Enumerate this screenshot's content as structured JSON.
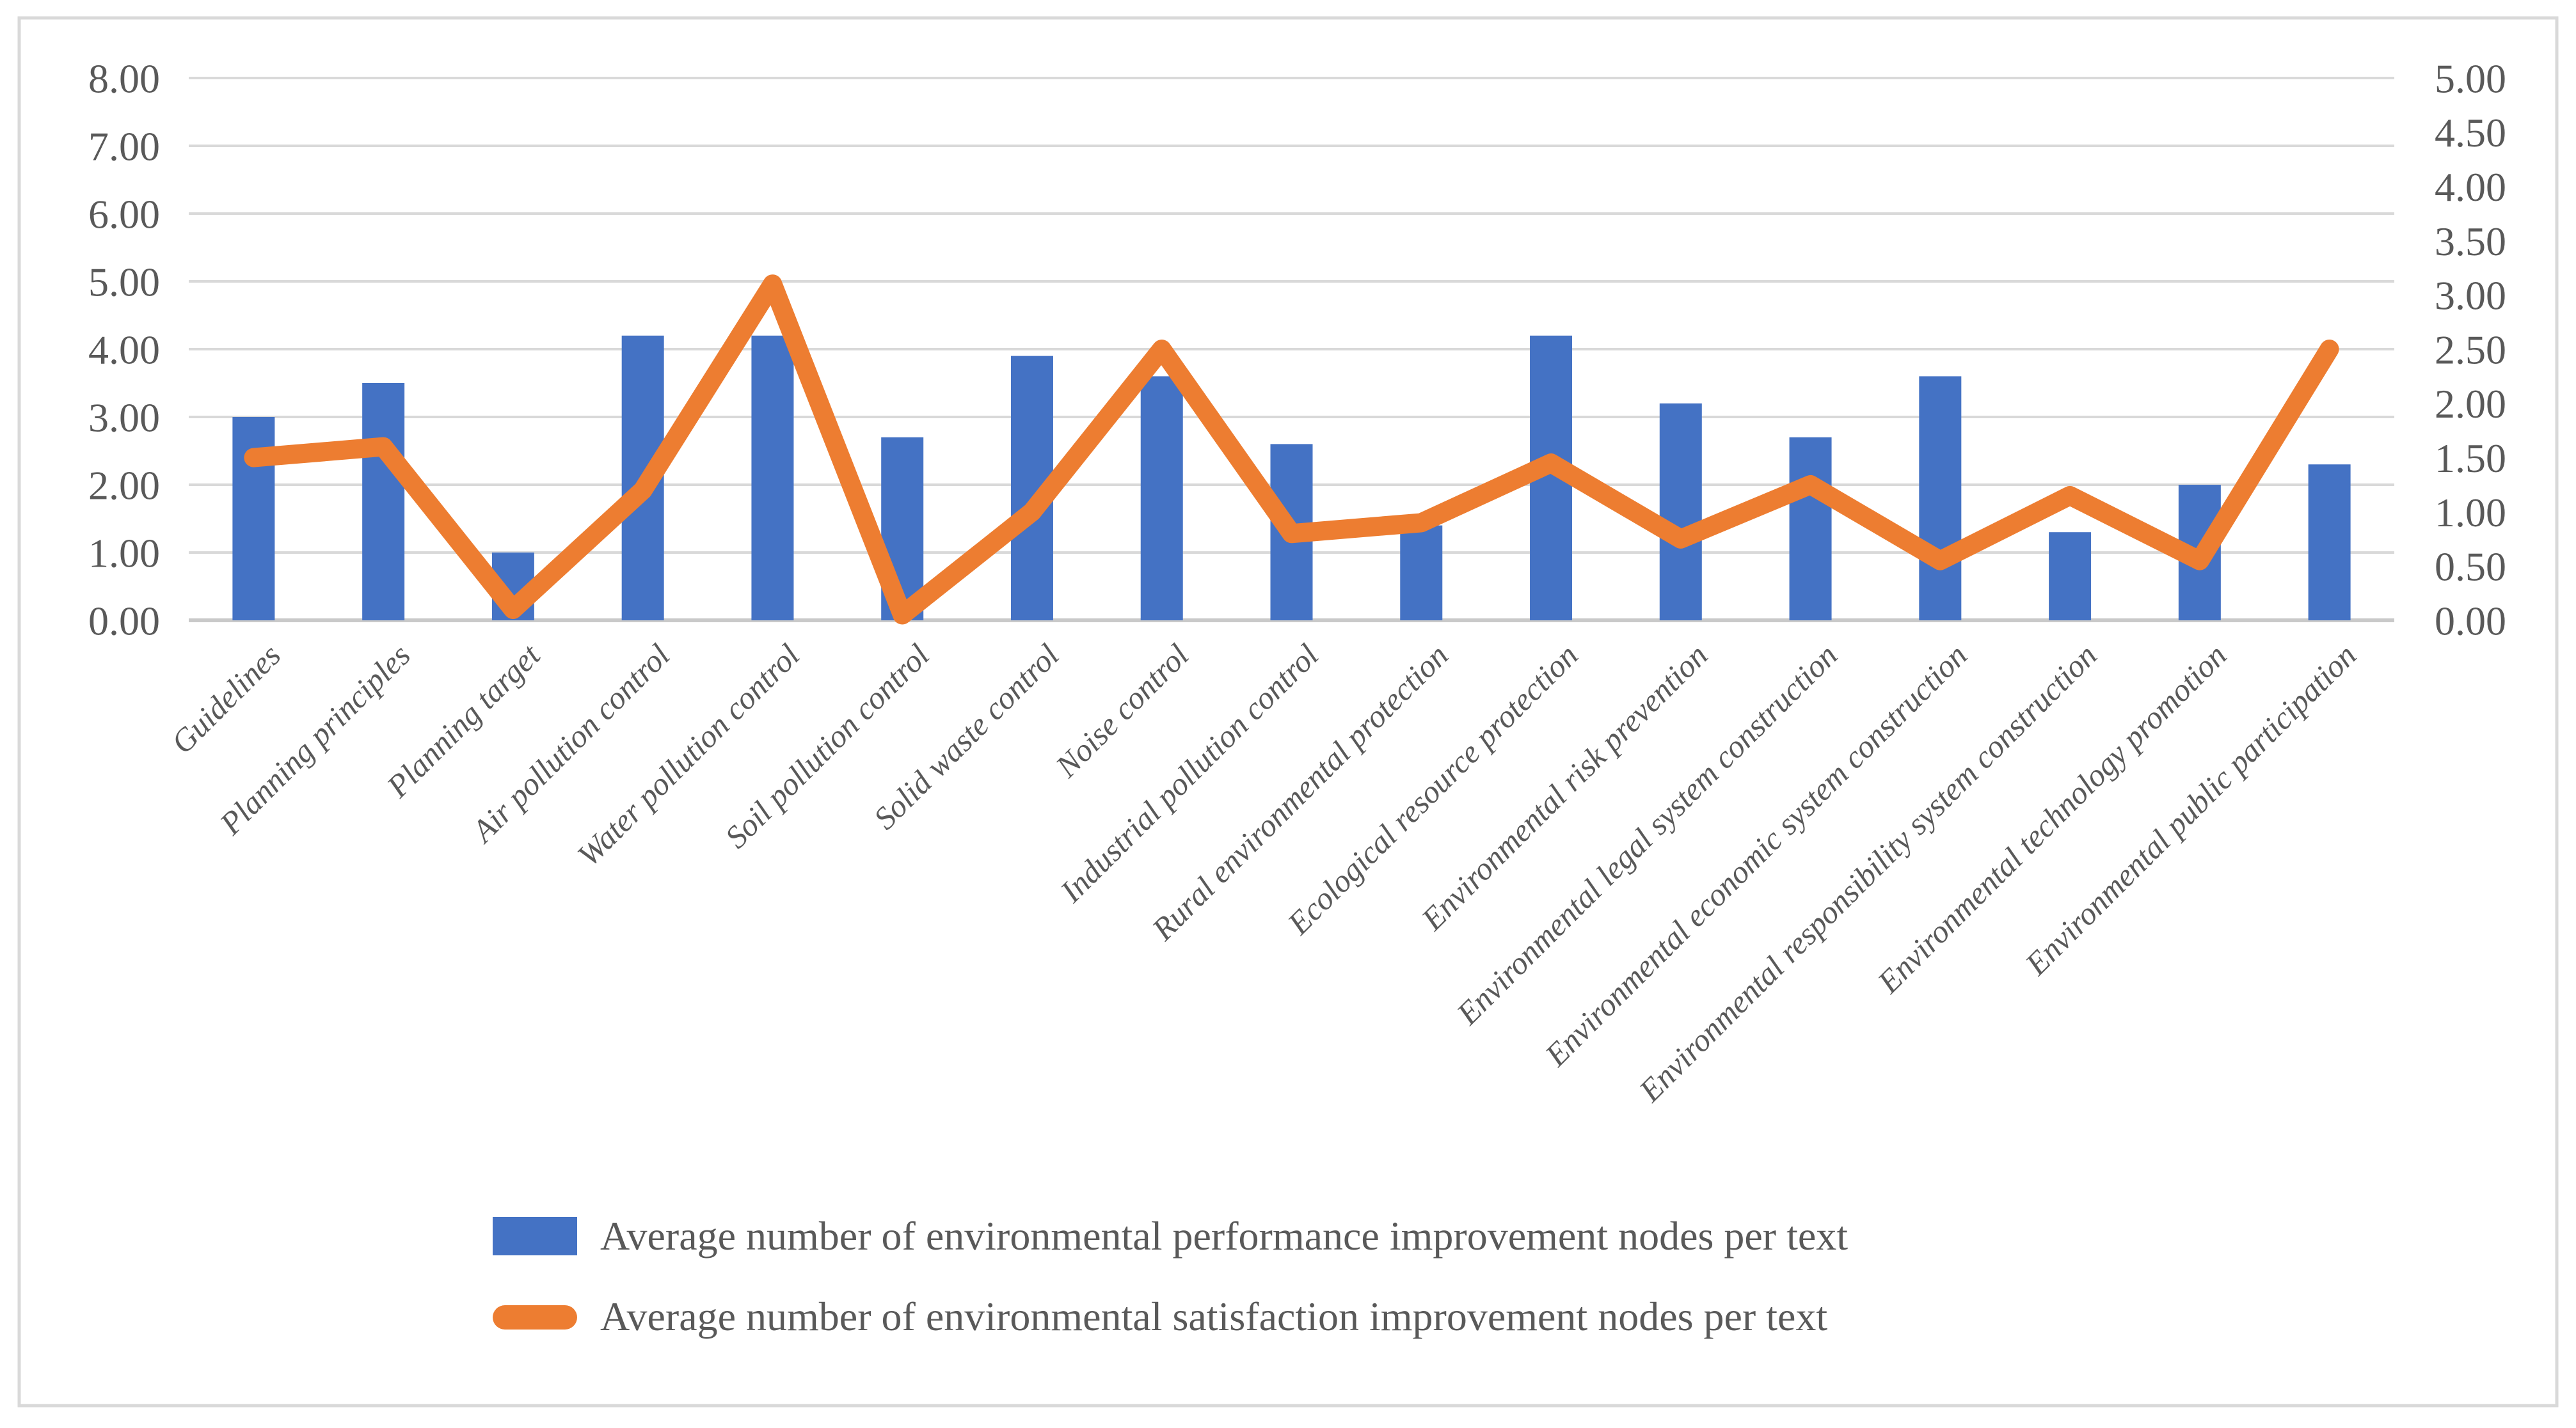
{
  "chart_data": {
    "type": "combo-bar-line",
    "title": "",
    "categories": [
      "Guidelines",
      "Planning principles",
      "Planning target",
      "Air pollution control",
      "Water pollution control",
      "Soil pollution control",
      "Solid waste control",
      "Noise control",
      "Industrial pollution control",
      "Rural environmental protection",
      "Ecological resource protection",
      "Environmental risk prevention",
      "Environmental legal system construction",
      "Environmental economic system construction",
      "Environmental responsibility system construction",
      "Environmental technology promotion",
      "Environmental public participation"
    ],
    "series": [
      {
        "name": "Average number of environmental performance improvement nodes per text",
        "type": "bar",
        "axis": "left",
        "color": "#4472C4",
        "values": [
          3.0,
          3.5,
          1.0,
          4.2,
          4.2,
          2.7,
          3.9,
          3.6,
          2.6,
          1.4,
          4.2,
          3.2,
          2.7,
          3.6,
          1.3,
          2.0,
          2.3
        ]
      },
      {
        "name": "Average number of environmental satisfaction improvement nodes per text",
        "type": "line",
        "axis": "right",
        "color": "#ED7D31",
        "values": [
          1.5,
          1.6,
          0.1,
          1.2,
          3.1,
          0.05,
          1.0,
          2.5,
          0.8,
          0.9,
          1.45,
          0.75,
          1.25,
          0.55,
          1.15,
          0.55,
          2.5
        ]
      }
    ],
    "left_axis": {
      "min": 0,
      "max": 8,
      "step": 1.0,
      "tick_labels": [
        "8.00",
        "7.00",
        "6.00",
        "5.00",
        "4.00",
        "3.00",
        "2.00",
        "1.00",
        "0.00"
      ]
    },
    "right_axis": {
      "min": 0,
      "max": 5,
      "step": 0.5,
      "tick_labels": [
        "5.00",
        "4.50",
        "4.00",
        "3.50",
        "3.00",
        "2.50",
        "2.00",
        "1.50",
        "1.00",
        "0.50",
        "0.00"
      ]
    },
    "grid": "horizontal gridlines at left-axis steps",
    "legend_position": "bottom",
    "xlabel": "",
    "ylabel": ""
  },
  "styles": {
    "bar_color": "#4472C4",
    "line_color": "#ED7D31",
    "text_color": "#595959",
    "gridline_color": "#D9D9D9",
    "axis_line_color": "#C9C9C9",
    "border_color": "#D9D9D9",
    "background": "#FFFFFF"
  }
}
